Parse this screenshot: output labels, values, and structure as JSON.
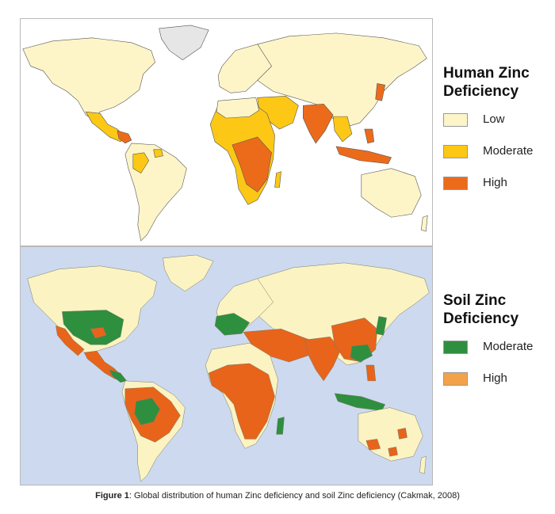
{
  "colors": {
    "low": "#fdf5c8",
    "moderate_human": "#fcc815",
    "high_human": "#ec6b1b",
    "soil_base": "#fbf3c2",
    "moderate_soil": "#2e8f3f",
    "high_soil": "#e7641a",
    "high_soil_legend": "#f3a24a",
    "ocean_soil": "#cdd9ee",
    "ice": "#e6e6e6"
  },
  "legend_human": {
    "title": "Human Zinc Deficiency",
    "items": [
      {
        "label": "Low",
        "color": "#fdf5c8"
      },
      {
        "label": "Moderate",
        "color": "#fcc815"
      },
      {
        "label": "High",
        "color": "#ec6b1b"
      }
    ]
  },
  "legend_soil": {
    "title": "Soil Zinc Deficiency",
    "items": [
      {
        "label": "Moderate",
        "color": "#2e8f3f"
      },
      {
        "label": "High",
        "color": "#f3a24a"
      }
    ]
  },
  "caption": {
    "prefix": "Figure 1",
    "text": ": Global distribution of human Zinc deficiency and soil Zinc deficiency (Cakmak, 2008)"
  }
}
